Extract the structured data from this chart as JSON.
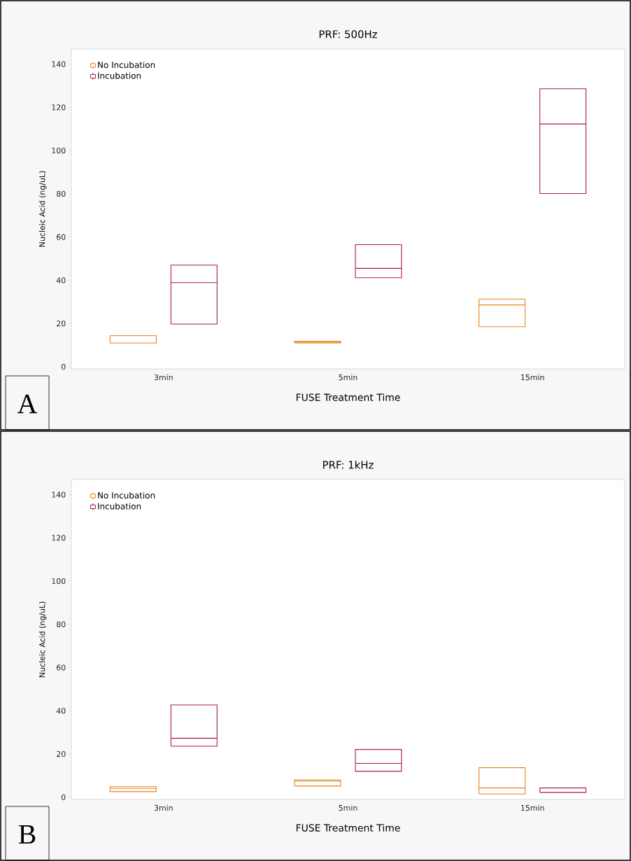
{
  "chart_data": [
    {
      "type": "box",
      "title": "PRF: 500Hz",
      "xlabel": "FUSE Treatment Time",
      "ylabel": "Nucleic Acid (ng/uL)",
      "categories": [
        "3min",
        "5min",
        "15min"
      ],
      "ylim": [
        -1,
        147
      ],
      "yticks": [
        0,
        20,
        40,
        60,
        80,
        100,
        120,
        140
      ],
      "legend": "top left",
      "annotations": [
        "A"
      ],
      "series": [
        {
          "name": "No Incubation",
          "color": "#e8821e",
          "boxes": [
            {
              "low": 11,
              "q1": 11,
              "median": 11,
              "q3": 14.4,
              "high": 14.4
            },
            {
              "low": 11,
              "q1": 11,
              "median": 11.4,
              "q3": 11.8,
              "high": 11.8
            },
            {
              "low": 18.5,
              "q1": 18.5,
              "median": 28.6,
              "q3": 31.3,
              "high": 31.3
            }
          ]
        },
        {
          "name": "Incubation",
          "color": "#a91d3a",
          "boxes": [
            {
              "low": 19.7,
              "q1": 19.7,
              "median": 38.9,
              "q3": 47,
              "high": 47
            },
            {
              "low": 41.2,
              "q1": 41.2,
              "median": 45.5,
              "q3": 56.5,
              "high": 56.5
            },
            {
              "low": 80.1,
              "q1": 80.1,
              "median": 112.3,
              "q3": 128.6,
              "high": 128.6
            }
          ]
        }
      ]
    },
    {
      "type": "box",
      "title": "PRF: 1kHz",
      "xlabel": "FUSE Treatment Time",
      "ylabel": "Nucleic Acid (ng/uL)",
      "categories": [
        "3min",
        "5min",
        "15min"
      ],
      "ylim": [
        -1,
        147
      ],
      "yticks": [
        0,
        20,
        40,
        60,
        80,
        100,
        120,
        140
      ],
      "legend": "top left",
      "annotations": [
        "B"
      ],
      "series": [
        {
          "name": "No Incubation",
          "color": "#e8821e",
          "boxes": [
            {
              "low": 2.6,
              "q1": 2.6,
              "median": 4.1,
              "q3": 4.9,
              "high": 4.9
            },
            {
              "low": 5.2,
              "q1": 5.2,
              "median": 7.5,
              "q3": 8,
              "high": 8
            },
            {
              "low": 1.5,
              "q1": 1.5,
              "median": 4.3,
              "q3": 13.7,
              "high": 13.7
            }
          ]
        },
        {
          "name": "Incubation",
          "color": "#a91d3a",
          "boxes": [
            {
              "low": 23.6,
              "q1": 23.6,
              "median": 27.3,
              "q3": 42.7,
              "high": 42.7
            },
            {
              "low": 12,
              "q1": 12,
              "median": 15.7,
              "q3": 22.1,
              "high": 22.1
            },
            {
              "low": 2.2,
              "q1": 2.2,
              "median": 2.2,
              "q3": 4.3,
              "high": 4.3
            }
          ]
        }
      ]
    }
  ]
}
